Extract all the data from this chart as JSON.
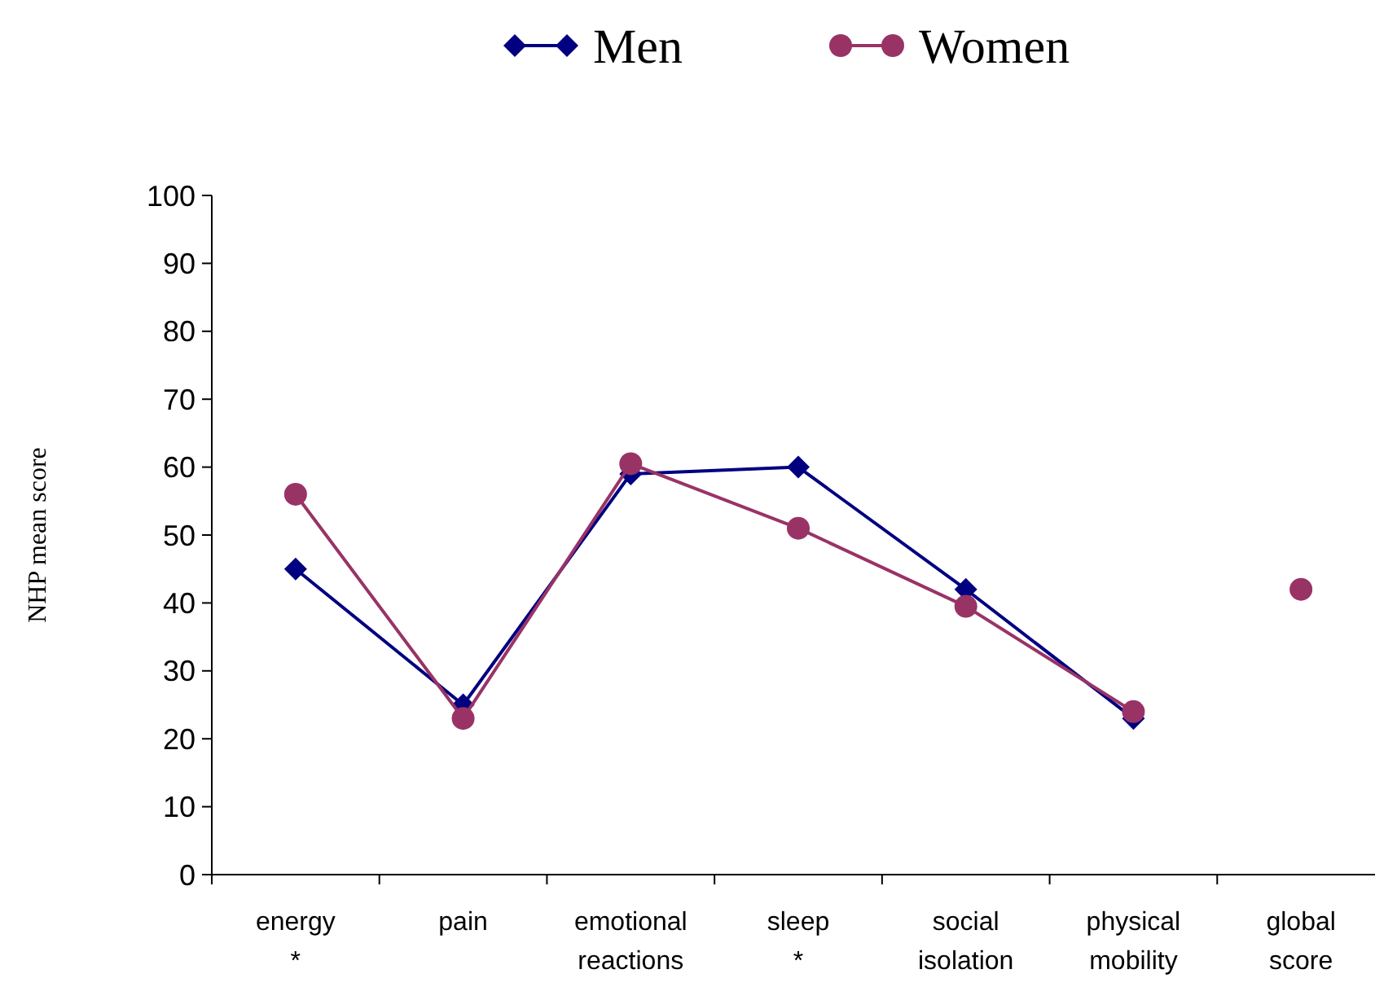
{
  "chart_data": {
    "type": "line",
    "ylabel": "NHP mean score",
    "categories": [
      "energy *",
      "pain",
      "emotional reactions",
      "sleep *",
      "social isolation",
      "physical mobility",
      "global score"
    ],
    "ylim": [
      0,
      100
    ],
    "yticks": [
      0,
      10,
      20,
      30,
      40,
      50,
      60,
      70,
      80,
      90,
      100
    ],
    "grid": false,
    "legend": "top",
    "series": [
      {
        "name": "Men",
        "color": "#000080",
        "marker": "diamond",
        "values": [
          45,
          25,
          59,
          60,
          42,
          23,
          null
        ]
      },
      {
        "name": "Women",
        "color": "#993366",
        "marker": "circle",
        "values": [
          56,
          23,
          60.5,
          51,
          39.5,
          24,
          null
        ]
      },
      {
        "type": "scatter",
        "color": "#993366",
        "marker": "circle",
        "x": [
          "global score"
        ],
        "values": [
          42
        ]
      }
    ]
  }
}
